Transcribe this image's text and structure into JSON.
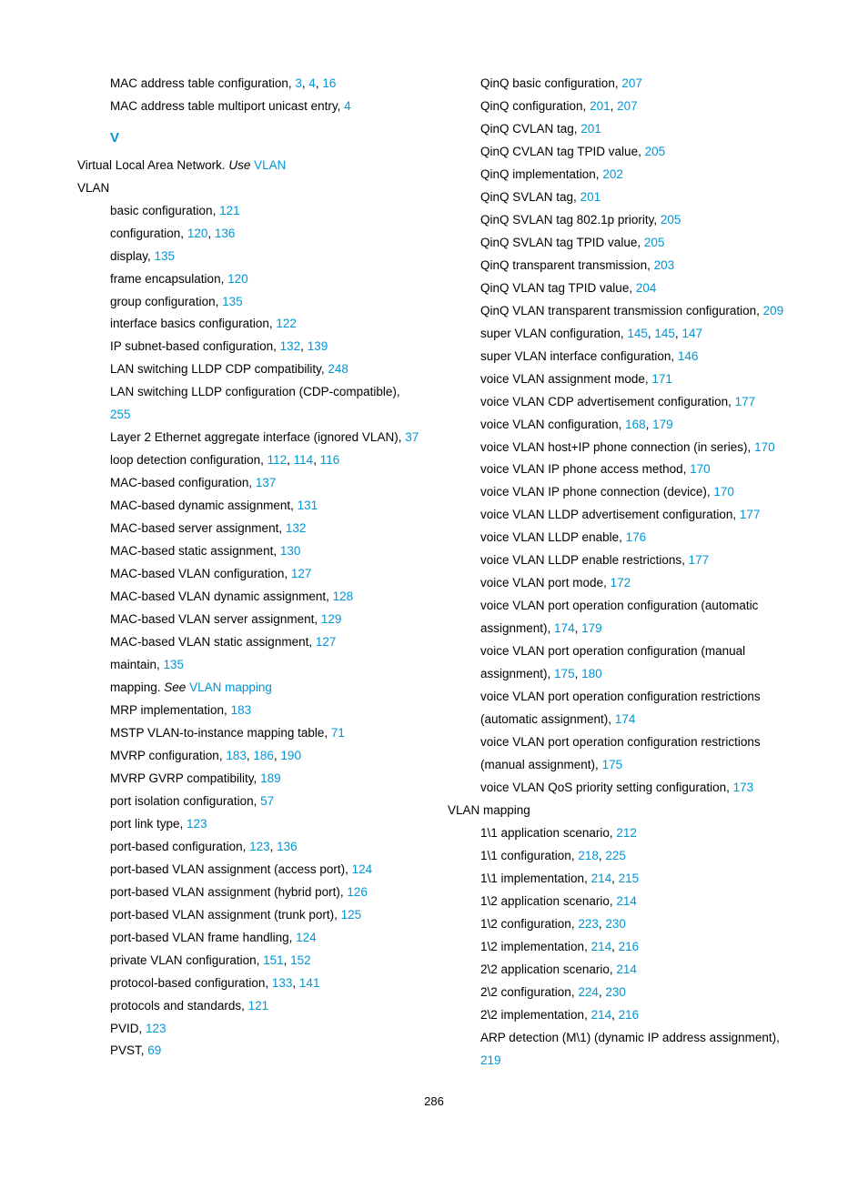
{
  "pageNumber": "286",
  "sectionLetter": "V",
  "col1": [
    {
      "indent": "sub",
      "parts": [
        {
          "t": "MAC address table configuration, "
        },
        {
          "t": "3",
          "l": 1
        },
        {
          "t": ", "
        },
        {
          "t": "4",
          "l": 1
        },
        {
          "t": ", "
        },
        {
          "t": "16",
          "l": 1
        }
      ]
    },
    {
      "indent": "sub",
      "parts": [
        {
          "t": "MAC address table multiport unicast entry, "
        },
        {
          "t": "4",
          "l": 1
        }
      ]
    },
    {
      "section": true
    },
    {
      "indent": "",
      "parts": [
        {
          "t": "Virtual Local Area Network. "
        },
        {
          "t": "Use ",
          "i": 1
        },
        {
          "t": "VLAN",
          "l": 1
        }
      ]
    },
    {
      "indent": "",
      "parts": [
        {
          "t": "VLAN"
        }
      ]
    },
    {
      "indent": "sub",
      "parts": [
        {
          "t": "basic configuration, "
        },
        {
          "t": "121",
          "l": 1
        }
      ]
    },
    {
      "indent": "sub",
      "parts": [
        {
          "t": "configuration, "
        },
        {
          "t": "120",
          "l": 1
        },
        {
          "t": ", "
        },
        {
          "t": "136",
          "l": 1
        }
      ]
    },
    {
      "indent": "sub",
      "parts": [
        {
          "t": "display, "
        },
        {
          "t": "135",
          "l": 1
        }
      ]
    },
    {
      "indent": "sub",
      "parts": [
        {
          "t": "frame encapsulation, "
        },
        {
          "t": "120",
          "l": 1
        }
      ]
    },
    {
      "indent": "sub",
      "parts": [
        {
          "t": "group configuration, "
        },
        {
          "t": "135",
          "l": 1
        }
      ]
    },
    {
      "indent": "sub",
      "parts": [
        {
          "t": "interface basics configuration, "
        },
        {
          "t": "122",
          "l": 1
        }
      ]
    },
    {
      "indent": "sub",
      "parts": [
        {
          "t": "IP subnet-based configuration, "
        },
        {
          "t": "132",
          "l": 1
        },
        {
          "t": ", "
        },
        {
          "t": "139",
          "l": 1
        }
      ]
    },
    {
      "indent": "sub",
      "parts": [
        {
          "t": "LAN switching LLDP CDP compatibility, "
        },
        {
          "t": "248",
          "l": 1
        }
      ]
    },
    {
      "indent": "sub",
      "parts": [
        {
          "t": "LAN switching LLDP configuration (CDP-compatible), "
        },
        {
          "t": "255",
          "l": 1
        }
      ]
    },
    {
      "indent": "sub",
      "parts": [
        {
          "t": "Layer 2 Ethernet aggregate interface (ignored VLAN), "
        },
        {
          "t": "37",
          "l": 1
        }
      ]
    },
    {
      "indent": "sub",
      "parts": [
        {
          "t": "loop detection configuration, "
        },
        {
          "t": "112",
          "l": 1
        },
        {
          "t": ", "
        },
        {
          "t": "114",
          "l": 1
        },
        {
          "t": ", "
        },
        {
          "t": "116",
          "l": 1
        }
      ]
    },
    {
      "indent": "sub",
      "parts": [
        {
          "t": "MAC-based configuration, "
        },
        {
          "t": "137",
          "l": 1
        }
      ]
    },
    {
      "indent": "sub",
      "parts": [
        {
          "t": "MAC-based dynamic assignment, "
        },
        {
          "t": "131",
          "l": 1
        }
      ]
    },
    {
      "indent": "sub",
      "parts": [
        {
          "t": "MAC-based server assignment, "
        },
        {
          "t": "132",
          "l": 1
        }
      ]
    },
    {
      "indent": "sub",
      "parts": [
        {
          "t": "MAC-based static assignment, "
        },
        {
          "t": "130",
          "l": 1
        }
      ]
    },
    {
      "indent": "sub",
      "parts": [
        {
          "t": "MAC-based VLAN configuration, "
        },
        {
          "t": "127",
          "l": 1
        }
      ]
    },
    {
      "indent": "sub",
      "parts": [
        {
          "t": "MAC-based VLAN dynamic assignment, "
        },
        {
          "t": "128",
          "l": 1
        }
      ]
    },
    {
      "indent": "sub",
      "parts": [
        {
          "t": "MAC-based VLAN server assignment, "
        },
        {
          "t": "129",
          "l": 1
        }
      ]
    },
    {
      "indent": "sub",
      "parts": [
        {
          "t": "MAC-based VLAN static assignment, "
        },
        {
          "t": "127",
          "l": 1
        }
      ]
    },
    {
      "indent": "sub",
      "parts": [
        {
          "t": "maintain, "
        },
        {
          "t": "135",
          "l": 1
        }
      ]
    },
    {
      "indent": "sub",
      "parts": [
        {
          "t": "mapping. "
        },
        {
          "t": "See ",
          "i": 1
        },
        {
          "t": "VLAN mapping",
          "l": 1
        }
      ]
    },
    {
      "indent": "sub",
      "parts": [
        {
          "t": "MRP implementation, "
        },
        {
          "t": "183",
          "l": 1
        }
      ]
    },
    {
      "indent": "sub",
      "parts": [
        {
          "t": "MSTP VLAN-to-instance mapping table, "
        },
        {
          "t": "71",
          "l": 1
        }
      ]
    },
    {
      "indent": "sub",
      "parts": [
        {
          "t": "MVRP configuration, "
        },
        {
          "t": "183",
          "l": 1
        },
        {
          "t": ", "
        },
        {
          "t": "186",
          "l": 1
        },
        {
          "t": ", "
        },
        {
          "t": "190",
          "l": 1
        }
      ]
    },
    {
      "indent": "sub",
      "parts": [
        {
          "t": "MVRP GVRP compatibility, "
        },
        {
          "t": "189",
          "l": 1
        }
      ]
    },
    {
      "indent": "sub",
      "parts": [
        {
          "t": "port isolation configuration, "
        },
        {
          "t": "57",
          "l": 1
        }
      ]
    },
    {
      "indent": "sub",
      "parts": [
        {
          "t": "port link type, "
        },
        {
          "t": "123",
          "l": 1
        }
      ]
    },
    {
      "indent": "sub",
      "parts": [
        {
          "t": "port-based configuration, "
        },
        {
          "t": "123",
          "l": 1
        },
        {
          "t": ", "
        },
        {
          "t": "136",
          "l": 1
        }
      ]
    },
    {
      "indent": "sub",
      "parts": [
        {
          "t": "port-based VLAN assignment (access port), "
        },
        {
          "t": "124",
          "l": 1
        }
      ]
    },
    {
      "indent": "sub",
      "parts": [
        {
          "t": "port-based VLAN assignment (hybrid port), "
        },
        {
          "t": "126",
          "l": 1
        }
      ]
    },
    {
      "indent": "sub",
      "parts": [
        {
          "t": "port-based VLAN assignment (trunk port), "
        },
        {
          "t": "125",
          "l": 1
        }
      ]
    },
    {
      "indent": "sub",
      "parts": [
        {
          "t": "port-based VLAN frame handling, "
        },
        {
          "t": "124",
          "l": 1
        }
      ]
    },
    {
      "indent": "sub",
      "parts": [
        {
          "t": "private VLAN configuration, "
        },
        {
          "t": "151",
          "l": 1
        },
        {
          "t": ", "
        },
        {
          "t": "152",
          "l": 1
        }
      ]
    },
    {
      "indent": "sub",
      "parts": [
        {
          "t": "protocol-based configuration, "
        },
        {
          "t": "133",
          "l": 1
        },
        {
          "t": ", "
        },
        {
          "t": "141",
          "l": 1
        }
      ]
    },
    {
      "indent": "sub",
      "parts": [
        {
          "t": "protocols and standards, "
        },
        {
          "t": "121",
          "l": 1
        }
      ]
    },
    {
      "indent": "sub",
      "parts": [
        {
          "t": "PVID, "
        },
        {
          "t": "123",
          "l": 1
        }
      ]
    },
    {
      "indent": "sub",
      "parts": [
        {
          "t": "PVST, "
        },
        {
          "t": "69",
          "l": 1
        }
      ]
    }
  ],
  "col2": [
    {
      "indent": "sub",
      "parts": [
        {
          "t": "QinQ basic configuration, "
        },
        {
          "t": "207",
          "l": 1
        }
      ]
    },
    {
      "indent": "sub",
      "parts": [
        {
          "t": "QinQ configuration, "
        },
        {
          "t": "201",
          "l": 1
        },
        {
          "t": ", "
        },
        {
          "t": "207",
          "l": 1
        }
      ]
    },
    {
      "indent": "sub",
      "parts": [
        {
          "t": "QinQ CVLAN tag, "
        },
        {
          "t": "201",
          "l": 1
        }
      ]
    },
    {
      "indent": "sub",
      "parts": [
        {
          "t": "QinQ CVLAN tag TPID value, "
        },
        {
          "t": "205",
          "l": 1
        }
      ]
    },
    {
      "indent": "sub",
      "parts": [
        {
          "t": "QinQ implementation, "
        },
        {
          "t": "202",
          "l": 1
        }
      ]
    },
    {
      "indent": "sub",
      "parts": [
        {
          "t": "QinQ SVLAN tag, "
        },
        {
          "t": "201",
          "l": 1
        }
      ]
    },
    {
      "indent": "sub",
      "parts": [
        {
          "t": "QinQ SVLAN tag 802.1p priority, "
        },
        {
          "t": "205",
          "l": 1
        }
      ]
    },
    {
      "indent": "sub",
      "parts": [
        {
          "t": "QinQ SVLAN tag TPID value, "
        },
        {
          "t": "205",
          "l": 1
        }
      ]
    },
    {
      "indent": "sub",
      "parts": [
        {
          "t": "QinQ transparent transmission, "
        },
        {
          "t": "203",
          "l": 1
        }
      ]
    },
    {
      "indent": "sub",
      "parts": [
        {
          "t": "QinQ VLAN tag TPID value, "
        },
        {
          "t": "204",
          "l": 1
        }
      ]
    },
    {
      "indent": "sub",
      "parts": [
        {
          "t": "QinQ VLAN transparent transmission configuration, "
        },
        {
          "t": "209",
          "l": 1
        }
      ]
    },
    {
      "indent": "sub",
      "parts": [
        {
          "t": "super VLAN configuration, "
        },
        {
          "t": "145",
          "l": 1
        },
        {
          "t": ", "
        },
        {
          "t": "145",
          "l": 1
        },
        {
          "t": ", "
        },
        {
          "t": "147",
          "l": 1
        }
      ]
    },
    {
      "indent": "sub",
      "parts": [
        {
          "t": "super VLAN interface configuration, "
        },
        {
          "t": "146",
          "l": 1
        }
      ]
    },
    {
      "indent": "sub",
      "parts": [
        {
          "t": "voice VLAN assignment mode, "
        },
        {
          "t": "171",
          "l": 1
        }
      ]
    },
    {
      "indent": "sub",
      "parts": [
        {
          "t": "voice VLAN CDP advertisement configuration, "
        },
        {
          "t": "177",
          "l": 1
        }
      ]
    },
    {
      "indent": "sub",
      "parts": [
        {
          "t": "voice VLAN configuration, "
        },
        {
          "t": "168",
          "l": 1
        },
        {
          "t": ", "
        },
        {
          "t": "179",
          "l": 1
        }
      ]
    },
    {
      "indent": "sub",
      "parts": [
        {
          "t": "voice VLAN host+IP phone connection (in series), "
        },
        {
          "t": "170",
          "l": 1
        }
      ]
    },
    {
      "indent": "sub",
      "parts": [
        {
          "t": "voice VLAN IP phone access method, "
        },
        {
          "t": "170",
          "l": 1
        }
      ]
    },
    {
      "indent": "sub",
      "parts": [
        {
          "t": "voice VLAN IP phone connection (device), "
        },
        {
          "t": "170",
          "l": 1
        }
      ]
    },
    {
      "indent": "sub",
      "parts": [
        {
          "t": "voice VLAN LLDP advertisement configuration, "
        },
        {
          "t": "177",
          "l": 1
        }
      ]
    },
    {
      "indent": "sub",
      "parts": [
        {
          "t": "voice VLAN LLDP enable, "
        },
        {
          "t": "176",
          "l": 1
        }
      ]
    },
    {
      "indent": "sub",
      "parts": [
        {
          "t": "voice VLAN LLDP enable restrictions, "
        },
        {
          "t": "177",
          "l": 1
        }
      ]
    },
    {
      "indent": "sub",
      "parts": [
        {
          "t": "voice VLAN port mode, "
        },
        {
          "t": "172",
          "l": 1
        }
      ]
    },
    {
      "indent": "sub",
      "parts": [
        {
          "t": "voice VLAN port operation configuration (automatic assignment), "
        },
        {
          "t": "174",
          "l": 1
        },
        {
          "t": ", "
        },
        {
          "t": "179",
          "l": 1
        }
      ]
    },
    {
      "indent": "sub",
      "parts": [
        {
          "t": "voice VLAN port operation configuration (manual assignment), "
        },
        {
          "t": "175",
          "l": 1
        },
        {
          "t": ", "
        },
        {
          "t": "180",
          "l": 1
        }
      ]
    },
    {
      "indent": "sub",
      "parts": [
        {
          "t": "voice VLAN port operation configuration restrictions (automatic assignment), "
        },
        {
          "t": "174",
          "l": 1
        }
      ]
    },
    {
      "indent": "sub",
      "parts": [
        {
          "t": "voice VLAN port operation configuration restrictions (manual assignment), "
        },
        {
          "t": "175",
          "l": 1
        }
      ]
    },
    {
      "indent": "sub",
      "parts": [
        {
          "t": "voice VLAN QoS priority setting configuration, "
        },
        {
          "t": "173",
          "l": 1
        }
      ]
    },
    {
      "indent": "",
      "parts": [
        {
          "t": "VLAN mapping"
        }
      ]
    },
    {
      "indent": "sub",
      "parts": [
        {
          "t": "1\\1 application scenario, "
        },
        {
          "t": "212",
          "l": 1
        }
      ]
    },
    {
      "indent": "sub",
      "parts": [
        {
          "t": "1\\1 configuration, "
        },
        {
          "t": "218",
          "l": 1
        },
        {
          "t": ", "
        },
        {
          "t": "225",
          "l": 1
        }
      ]
    },
    {
      "indent": "sub",
      "parts": [
        {
          "t": "1\\1 implementation, "
        },
        {
          "t": "214",
          "l": 1
        },
        {
          "t": ", "
        },
        {
          "t": "215",
          "l": 1
        }
      ]
    },
    {
      "indent": "sub",
      "parts": [
        {
          "t": "1\\2 application scenario, "
        },
        {
          "t": "214",
          "l": 1
        }
      ]
    },
    {
      "indent": "sub",
      "parts": [
        {
          "t": "1\\2 configuration, "
        },
        {
          "t": "223",
          "l": 1
        },
        {
          "t": ", "
        },
        {
          "t": "230",
          "l": 1
        }
      ]
    },
    {
      "indent": "sub",
      "parts": [
        {
          "t": "1\\2 implementation, "
        },
        {
          "t": "214",
          "l": 1
        },
        {
          "t": ", "
        },
        {
          "t": "216",
          "l": 1
        }
      ]
    },
    {
      "indent": "sub",
      "parts": [
        {
          "t": "2\\2 application scenario, "
        },
        {
          "t": "214",
          "l": 1
        }
      ]
    },
    {
      "indent": "sub",
      "parts": [
        {
          "t": "2\\2 configuration, "
        },
        {
          "t": "224",
          "l": 1
        },
        {
          "t": ", "
        },
        {
          "t": "230",
          "l": 1
        }
      ]
    },
    {
      "indent": "sub",
      "parts": [
        {
          "t": "2\\2 implementation, "
        },
        {
          "t": "214",
          "l": 1
        },
        {
          "t": ", "
        },
        {
          "t": "216",
          "l": 1
        }
      ]
    },
    {
      "indent": "sub",
      "parts": [
        {
          "t": "ARP detection (M\\1) (dynamic IP address assignment), "
        },
        {
          "t": "219",
          "l": 1
        }
      ]
    }
  ]
}
